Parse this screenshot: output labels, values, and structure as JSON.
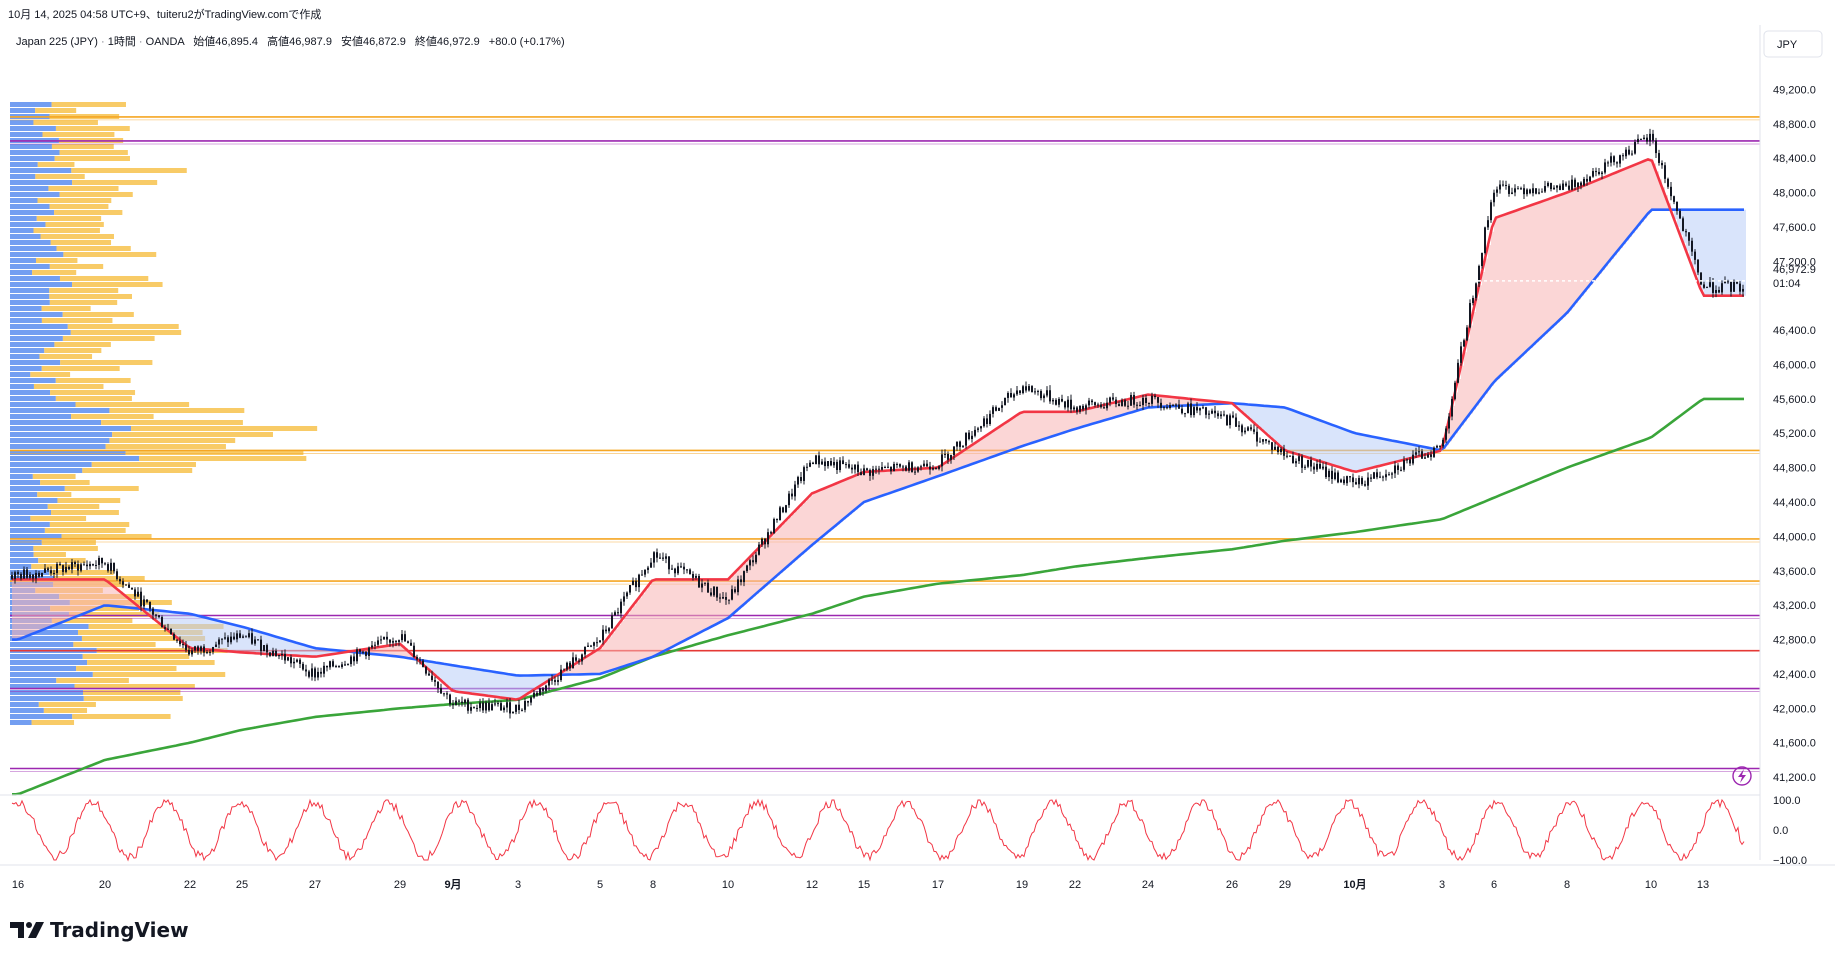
{
  "header": {
    "caption": "10月 14, 2025 04:58 UTC+9、tuiteru2がTradingView.comで作成"
  },
  "legend": {
    "symbol": "Japan 225 (JPY)",
    "interval": "1時間",
    "source": "OANDA",
    "open": "始値46,895.4",
    "high": "高値46,987.9",
    "low": "安値46,872.9",
    "close": "終値46,972.9",
    "change": "+80.0 (+0.17%)"
  },
  "currency_button": "JPY",
  "price_tag": {
    "value": "46,972.9",
    "countdown": "01:04"
  },
  "brand": "TradingView",
  "colors": {
    "candle": "#131722",
    "ma_fast": "#f23645",
    "ma_mid": "#2962ff",
    "ma_slow": "#3aa53a",
    "fill_up": "#f8b4b4",
    "fill_down": "#b9cdf7",
    "hline_orange": "#f5a623",
    "hline_purple": "#9c27b0",
    "hline_red": "#e53935",
    "vp_blue": "#5b8def",
    "vp_orange": "#f7c24c",
    "oscillator": "#f23645"
  },
  "icons": {
    "replay": "lightning-icon"
  },
  "chart_data": {
    "type": "line",
    "title": "Japan 225 (JPY) · 1時間 · OANDA",
    "yaxis_ticks": [
      49200,
      48800,
      48400,
      48000,
      47600,
      47200,
      46400,
      46000,
      45600,
      45200,
      44800,
      44400,
      44000,
      43600,
      43200,
      42800,
      42400,
      42000,
      41600,
      41200
    ],
    "ylim": [
      41050,
      49600
    ],
    "xaxis_ticks": [
      "16",
      "20",
      "22",
      "25",
      "27",
      "29",
      "9月",
      "3",
      "5",
      "8",
      "10",
      "12",
      "15",
      "17",
      "19",
      "22",
      "24",
      "26",
      "29",
      "10月",
      "3",
      "6",
      "8",
      "10",
      "13"
    ],
    "horizontal_levels": [
      {
        "price": 48880,
        "color": "orange"
      },
      {
        "price": 48600,
        "color": "purple"
      },
      {
        "price": 45000,
        "color": "orange"
      },
      {
        "price": 43970,
        "color": "orange"
      },
      {
        "price": 43480,
        "color": "orange"
      },
      {
        "price": 43080,
        "color": "purple"
      },
      {
        "price": 42670,
        "color": "red"
      },
      {
        "price": 42230,
        "color": "purple"
      },
      {
        "price": 41300,
        "color": "purple"
      }
    ],
    "series": [
      {
        "name": "",
        "style": "price",
        "x": [
          "16",
          "20",
          "22",
          "25",
          "27",
          "29",
          "9月",
          "3",
          "5",
          "8",
          "10",
          "12",
          "15",
          "17",
          "19",
          "22",
          "24",
          "26",
          "29",
          "10月",
          "3",
          "6",
          "8",
          "10",
          "13"
        ],
        "values": [
          43550,
          43700,
          42650,
          42850,
          42400,
          42850,
          42050,
          42000,
          42800,
          43800,
          43250,
          44900,
          44750,
          44850,
          45750,
          45500,
          45600,
          45350,
          44950,
          44600,
          45050,
          48050,
          48050,
          48650,
          46900
        ]
      },
      {
        "name": "",
        "style": "ma_fast",
        "x": [
          "16",
          "20",
          "22",
          "25",
          "27",
          "29",
          "9月",
          "3",
          "5",
          "8",
          "10",
          "12",
          "15",
          "17",
          "19",
          "22",
          "24",
          "26",
          "29",
          "10月",
          "3",
          "6",
          "8",
          "10",
          "13"
        ],
        "values": [
          43500,
          43500,
          42700,
          42650,
          42600,
          42750,
          42200,
          42100,
          42700,
          43500,
          43500,
          44500,
          44750,
          44800,
          45450,
          45450,
          45650,
          45550,
          45000,
          44750,
          45000,
          47700,
          48000,
          48400,
          46800
        ]
      },
      {
        "name": "",
        "style": "ma_mid",
        "x": [
          "16",
          "20",
          "22",
          "25",
          "27",
          "29",
          "9月",
          "3",
          "5",
          "8",
          "10",
          "12",
          "15",
          "17",
          "19",
          "22",
          "24",
          "26",
          "29",
          "10月",
          "3",
          "6",
          "8",
          "10",
          "13"
        ],
        "values": [
          42800,
          43200,
          43100,
          42950,
          42700,
          42600,
          42500,
          42380,
          42400,
          42600,
          43050,
          43900,
          44400,
          44700,
          45050,
          45250,
          45500,
          45550,
          45500,
          45200,
          45000,
          45800,
          46600,
          47800,
          47800
        ]
      },
      {
        "name": "",
        "style": "ma_slow",
        "x": [
          "16",
          "20",
          "22",
          "25",
          "27",
          "29",
          "9月",
          "3",
          "5",
          "8",
          "10",
          "12",
          "15",
          "17",
          "19",
          "22",
          "24",
          "26",
          "29",
          "10月",
          "3",
          "6",
          "8",
          "10",
          "13"
        ],
        "values": [
          41000,
          41400,
          41600,
          41750,
          41900,
          42000,
          42050,
          42100,
          42350,
          42600,
          42850,
          43100,
          43300,
          43450,
          43550,
          43650,
          43750,
          43850,
          43950,
          44050,
          44200,
          44450,
          44800,
          45150,
          45600
        ]
      }
    ],
    "oscillator": {
      "ticks": [
        100.0,
        0.0,
        -100.0
      ],
      "tick_labels": [
        "100.0",
        "0.0",
        "−100.0"
      ],
      "range": [
        -100,
        100
      ]
    }
  }
}
